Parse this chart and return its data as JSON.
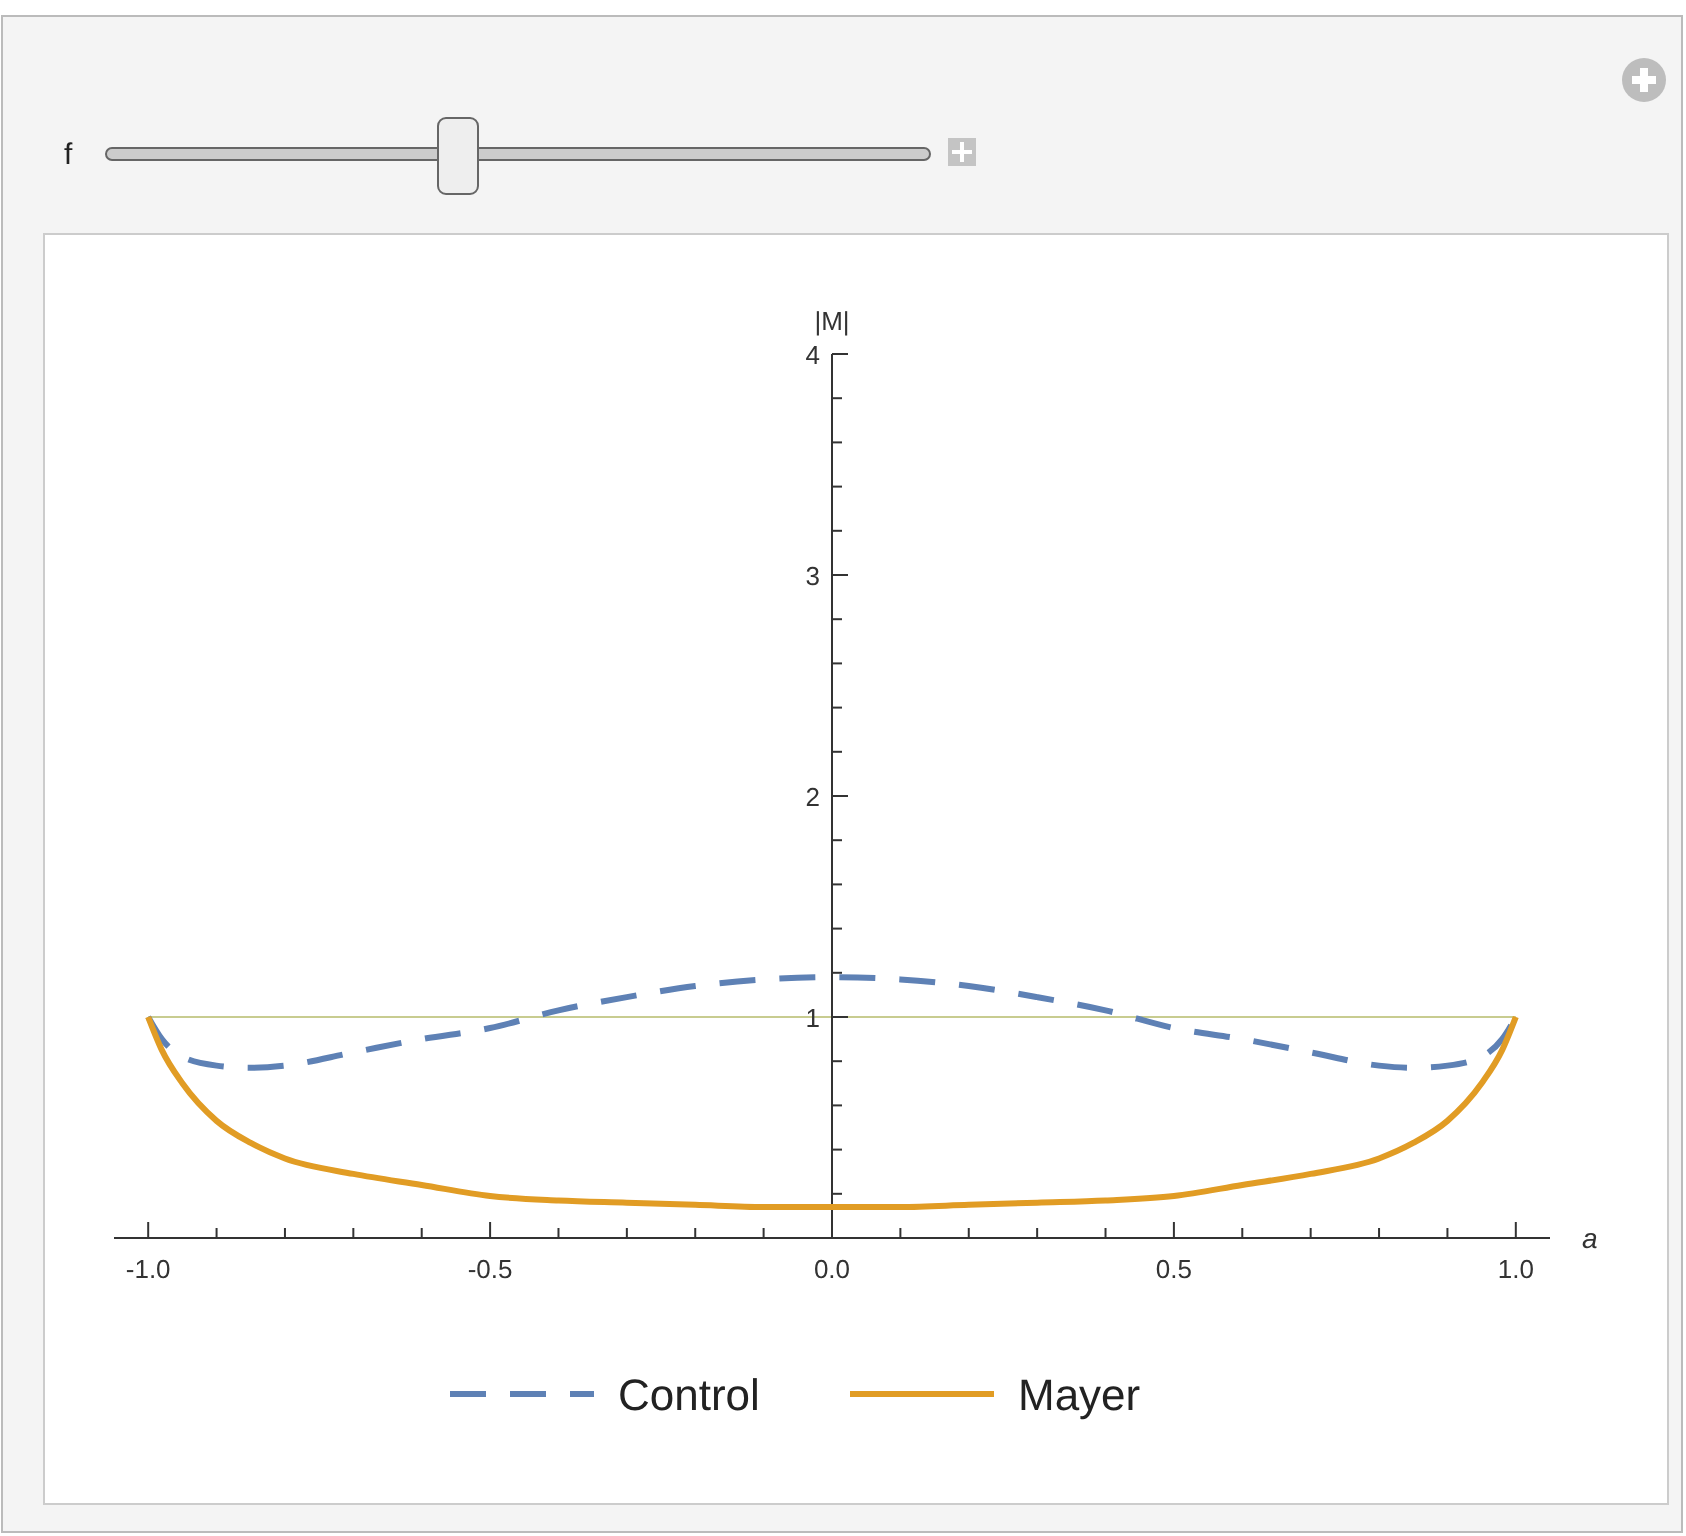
{
  "chart_data": {
    "type": "line",
    "xlabel": "a",
    "ylabel": "|M|",
    "xlim": [
      -1.05,
      1.05
    ],
    "ylim": [
      0,
      4
    ],
    "xticks": [
      {
        "value": -1,
        "label": "-1.0"
      },
      {
        "value": -0.9,
        "label": null
      },
      {
        "value": -0.8,
        "label": null
      },
      {
        "value": -0.7,
        "label": null
      },
      {
        "value": -0.6,
        "label": null
      },
      {
        "value": -0.5,
        "label": "-0.5"
      },
      {
        "value": -0.4,
        "label": null
      },
      {
        "value": -0.3,
        "label": null
      },
      {
        "value": -0.2,
        "label": null
      },
      {
        "value": -0.1,
        "label": null
      },
      {
        "value": 0,
        "label": "0.0"
      },
      {
        "value": 0.1,
        "label": null
      },
      {
        "value": 0.2,
        "label": null
      },
      {
        "value": 0.3,
        "label": null
      },
      {
        "value": 0.4,
        "label": null
      },
      {
        "value": 0.5,
        "label": "0.5"
      },
      {
        "value": 0.6,
        "label": null
      },
      {
        "value": 0.7,
        "label": null
      },
      {
        "value": 0.8,
        "label": null
      },
      {
        "value": 0.9,
        "label": null
      },
      {
        "value": 1,
        "label": "1.0"
      }
    ],
    "yticks": [
      {
        "value": 0.2,
        "label": null
      },
      {
        "value": 0.4,
        "label": null
      },
      {
        "value": 0.6,
        "label": null
      },
      {
        "value": 0.8,
        "label": null
      },
      1,
      {
        "value": 1.2,
        "label": null
      },
      {
        "value": 1.4,
        "label": null
      },
      {
        "value": 1.6,
        "label": null
      },
      {
        "value": 1.8,
        "label": null
      },
      2,
      {
        "value": 2.2,
        "label": null
      },
      {
        "value": 2.4,
        "label": null
      },
      {
        "value": 2.6,
        "label": null
      },
      {
        "value": 2.8,
        "label": null
      },
      3,
      {
        "value": 3.2,
        "label": null
      },
      {
        "value": 3.4,
        "label": null
      },
      {
        "value": 3.6,
        "label": null
      },
      {
        "value": 3.8,
        "label": null
      },
      4
    ],
    "grid": false,
    "legend": "bottom",
    "marker": "none",
    "ref_lines": [
      {
        "axis": "y",
        "value": 1,
        "color": "#c8cc90",
        "line_style": "solid"
      }
    ],
    "annotations": [
      "f"
    ],
    "x": [
      -1,
      -0.98,
      -0.95,
      -0.9,
      -0.85,
      -0.8,
      -0.7,
      -0.6,
      -0.5,
      -0.4,
      -0.3,
      -0.2,
      -0.1,
      0,
      0.1,
      0.2,
      0.3,
      0.4,
      0.5,
      0.6,
      0.7,
      0.8,
      0.85,
      0.9,
      0.95,
      0.98,
      1
    ],
    "series": [
      {
        "name": "Control",
        "color": "#5e81b5",
        "line_style": "dashed",
        "values": [
          1,
          0.9,
          0.82,
          0.78,
          0.77,
          0.78,
          0.84,
          0.9,
          0.95,
          1.03,
          1.09,
          1.14,
          1.17,
          1.18,
          1.17,
          1.14,
          1.09,
          1.03,
          0.95,
          0.9,
          0.84,
          0.78,
          0.77,
          0.78,
          0.82,
          0.9,
          1
        ]
      },
      {
        "name": "Mayer",
        "color": "#e19c24",
        "line_style": "solid",
        "values": [
          1,
          0.85,
          0.7,
          0.53,
          0.43,
          0.36,
          0.29,
          0.24,
          0.19,
          0.17,
          0.16,
          0.15,
          0.14,
          0.14,
          0.14,
          0.15,
          0.16,
          0.17,
          0.19,
          0.24,
          0.29,
          0.36,
          0.43,
          0.53,
          0.7,
          0.85,
          1
        ]
      }
    ]
  }
}
